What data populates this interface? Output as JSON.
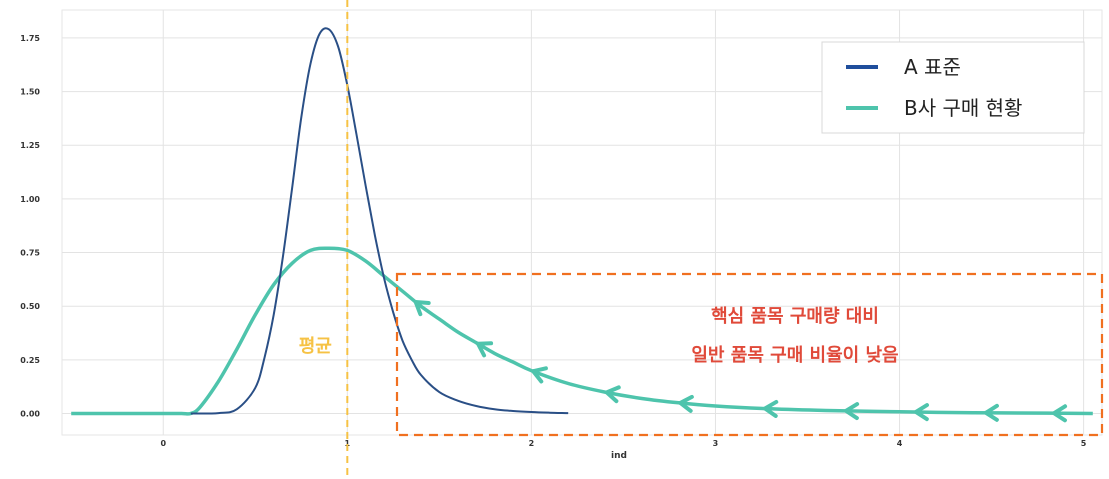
{
  "chart_data": {
    "type": "line",
    "xlabel": "ind",
    "ylabel": "",
    "xlim": [
      -0.55,
      5.1
    ],
    "ylim": [
      -0.1,
      1.88
    ],
    "xticks": [
      {
        "v": 0,
        "label": "0"
      },
      {
        "v": 1,
        "label": "1"
      },
      {
        "v": 2,
        "label": "2"
      },
      {
        "v": 3,
        "label": "3"
      },
      {
        "v": 4,
        "label": "4"
      },
      {
        "v": 5,
        "label": "5"
      }
    ],
    "yticks": [
      {
        "v": 0,
        "label": "0.00"
      },
      {
        "v": 0.25,
        "label": "0.25"
      },
      {
        "v": 0.5,
        "label": "0.50"
      },
      {
        "v": 0.75,
        "label": "0.75"
      },
      {
        "v": 1.0,
        "label": "1.00"
      },
      {
        "v": 1.25,
        "label": "1.25"
      },
      {
        "v": 1.5,
        "label": "1.50"
      },
      {
        "v": 1.75,
        "label": "1.75"
      }
    ],
    "grid": true,
    "legend_position": "top-right",
    "series": [
      {
        "name": "A 표준",
        "color": "#2a4f86",
        "x": [
          0.15,
          0.3,
          0.4,
          0.5,
          0.55,
          0.6,
          0.65,
          0.7,
          0.75,
          0.8,
          0.85,
          0.9,
          0.95,
          1.0,
          1.05,
          1.1,
          1.15,
          1.2,
          1.25,
          1.3,
          1.35,
          1.4,
          1.5,
          1.6,
          1.7,
          1.8,
          1.9,
          2.0,
          2.1,
          2.2
        ],
        "values": [
          0.0,
          0.002,
          0.02,
          0.12,
          0.26,
          0.46,
          0.73,
          1.05,
          1.38,
          1.63,
          1.77,
          1.79,
          1.71,
          1.53,
          1.3,
          1.06,
          0.83,
          0.63,
          0.47,
          0.34,
          0.25,
          0.18,
          0.1,
          0.06,
          0.035,
          0.02,
          0.012,
          0.007,
          0.004,
          0.002
        ]
      },
      {
        "name": "B사 구매 현황",
        "color": "#4ec4ac",
        "x": [
          -0.5,
          0.0,
          0.1,
          0.15,
          0.2,
          0.3,
          0.4,
          0.5,
          0.6,
          0.7,
          0.8,
          0.9,
          1.0,
          1.1,
          1.2,
          1.3,
          1.4,
          1.5,
          1.6,
          1.7,
          1.8,
          1.9,
          2.0,
          2.2,
          2.4,
          2.6,
          2.8,
          3.0,
          3.3,
          3.6,
          4.0,
          4.4,
          4.8,
          5.05
        ],
        "values": [
          0.0,
          0.0,
          0.0,
          0.0,
          0.03,
          0.15,
          0.3,
          0.46,
          0.6,
          0.7,
          0.76,
          0.77,
          0.76,
          0.71,
          0.64,
          0.57,
          0.5,
          0.44,
          0.38,
          0.33,
          0.28,
          0.24,
          0.2,
          0.14,
          0.1,
          0.07,
          0.05,
          0.035,
          0.022,
          0.014,
          0.008,
          0.004,
          0.002,
          0.0
        ]
      }
    ],
    "mean_line": {
      "x": 1.0,
      "color": "#f6c244",
      "label": "평균"
    },
    "highlight_box": {
      "x_from": 1.27,
      "x_to": 5.1,
      "y_from": -0.1,
      "y_to": 0.65,
      "color": "#f07020"
    },
    "annotation_color": "#e04a3a",
    "arrow_x": [
      1.38,
      1.72,
      2.02,
      2.42,
      2.82,
      3.28,
      3.72,
      4.1,
      4.48,
      4.85
    ]
  },
  "annotation": {
    "line1": "핵심 품목 구매량 대비",
    "line2": "일반 품목 구매 비율이 낮음"
  }
}
